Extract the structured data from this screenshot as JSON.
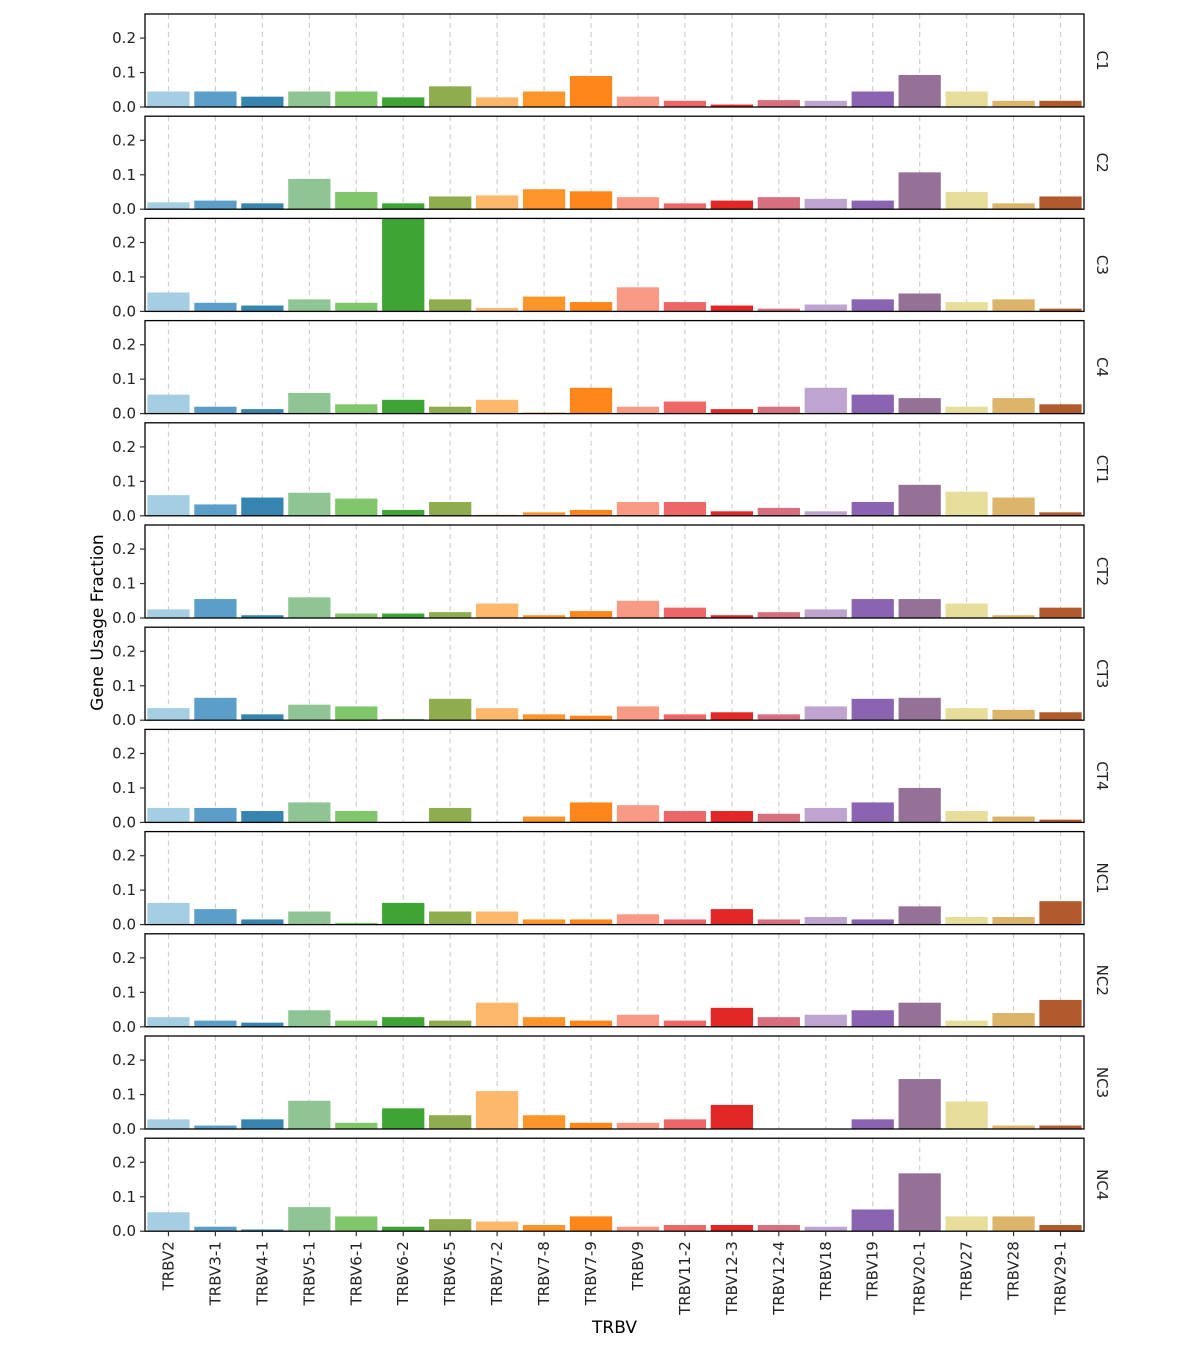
{
  "chart_data": {
    "type": "bar",
    "facet_layout": "vertical",
    "xlabel": "TRBV",
    "ylabel": "Gene Usage Fraction",
    "ylim": [
      0,
      0.27
    ],
    "yticks": [
      0.0,
      0.1,
      0.2
    ],
    "ytick_labels": [
      "0.0",
      "0.1",
      "0.2"
    ],
    "grid": "vertical dashed",
    "categories": [
      "TRBV2",
      "TRBV3-1",
      "TRBV4-1",
      "TRBV5-1",
      "TRBV6-1",
      "TRBV6-2",
      "TRBV6-5",
      "TRBV7-2",
      "TRBV7-8",
      "TRBV7-9",
      "TRBV9",
      "TRBV11-2",
      "TRBV12-3",
      "TRBV12-4",
      "TRBV18",
      "TRBV19",
      "TRBV20-1",
      "TRBV27",
      "TRBV28",
      "TRBV29-1"
    ],
    "colors": [
      "#a6cee3",
      "#5a9ec9",
      "#3585b0",
      "#8fc594",
      "#80c76b",
      "#3ea534",
      "#8fac4f",
      "#fdb86c",
      "#fd952b",
      "#fe861b",
      "#f89a85",
      "#ee6767",
      "#e32626",
      "#d76f7f",
      "#c0a4d0",
      "#8a63b1",
      "#957198",
      "#e8de9b",
      "#ddb56a",
      "#b15a2c"
    ],
    "series": [
      {
        "name": "C1",
        "values": [
          0.045,
          0.045,
          0.03,
          0.045,
          0.045,
          0.028,
          0.06,
          0.028,
          0.045,
          0.09,
          0.03,
          0.018,
          0.007,
          0.02,
          0.018,
          0.045,
          0.093,
          0.045,
          0.018,
          0.018
        ]
      },
      {
        "name": "C2",
        "values": [
          0.02,
          0.025,
          0.017,
          0.088,
          0.05,
          0.017,
          0.037,
          0.04,
          0.058,
          0.052,
          0.035,
          0.017,
          0.025,
          0.035,
          0.03,
          0.025,
          0.107,
          0.05,
          0.017,
          0.037
        ]
      },
      {
        "name": "C3",
        "values": [
          0.055,
          0.025,
          0.017,
          0.035,
          0.025,
          0.27,
          0.035,
          0.01,
          0.043,
          0.027,
          0.07,
          0.027,
          0.017,
          0.008,
          0.02,
          0.035,
          0.052,
          0.027,
          0.035,
          0.008
        ]
      },
      {
        "name": "C4",
        "values": [
          0.055,
          0.02,
          0.013,
          0.06,
          0.027,
          0.04,
          0.02,
          0.04,
          0.003,
          0.075,
          0.02,
          0.035,
          0.013,
          0.02,
          0.075,
          0.055,
          0.045,
          0.02,
          0.045,
          0.027
        ]
      },
      {
        "name": "CT1",
        "values": [
          0.06,
          0.033,
          0.053,
          0.067,
          0.05,
          0.017,
          0.04,
          0.003,
          0.01,
          0.017,
          0.04,
          0.04,
          0.013,
          0.023,
          0.013,
          0.04,
          0.09,
          0.07,
          0.053,
          0.01
        ]
      },
      {
        "name": "CT2",
        "values": [
          0.025,
          0.055,
          0.008,
          0.06,
          0.013,
          0.013,
          0.017,
          0.042,
          0.008,
          0.02,
          0.05,
          0.03,
          0.008,
          0.017,
          0.025,
          0.055,
          0.055,
          0.042,
          0.008,
          0.03
        ]
      },
      {
        "name": "CT3",
        "values": [
          0.035,
          0.065,
          0.017,
          0.045,
          0.04,
          0.003,
          0.062,
          0.035,
          0.017,
          0.013,
          0.04,
          0.017,
          0.023,
          0.017,
          0.04,
          0.062,
          0.065,
          0.035,
          0.03,
          0.023
        ]
      },
      {
        "name": "CT4",
        "values": [
          0.042,
          0.042,
          0.033,
          0.058,
          0.033,
          0.0,
          0.042,
          0.0,
          0.017,
          0.058,
          0.05,
          0.033,
          0.033,
          0.025,
          0.042,
          0.058,
          0.1,
          0.033,
          0.017,
          0.008
        ]
      },
      {
        "name": "NC1",
        "values": [
          0.063,
          0.045,
          0.015,
          0.038,
          0.005,
          0.063,
          0.038,
          0.038,
          0.015,
          0.015,
          0.03,
          0.015,
          0.045,
          0.015,
          0.022,
          0.015,
          0.053,
          0.022,
          0.022,
          0.068
        ]
      },
      {
        "name": "NC2",
        "values": [
          0.028,
          0.018,
          0.012,
          0.048,
          0.018,
          0.028,
          0.018,
          0.07,
          0.028,
          0.018,
          0.035,
          0.018,
          0.055,
          0.028,
          0.035,
          0.048,
          0.07,
          0.018,
          0.04,
          0.078
        ]
      },
      {
        "name": "NC3",
        "values": [
          0.028,
          0.01,
          0.028,
          0.082,
          0.018,
          0.06,
          0.04,
          0.11,
          0.04,
          0.018,
          0.018,
          0.028,
          0.07,
          0.0,
          0.0,
          0.028,
          0.145,
          0.08,
          0.01,
          0.01
        ]
      },
      {
        "name": "NC4",
        "values": [
          0.055,
          0.013,
          0.005,
          0.07,
          0.043,
          0.013,
          0.035,
          0.028,
          0.018,
          0.043,
          0.013,
          0.018,
          0.018,
          0.018,
          0.013,
          0.063,
          0.168,
          0.043,
          0.043,
          0.018
        ]
      }
    ]
  }
}
